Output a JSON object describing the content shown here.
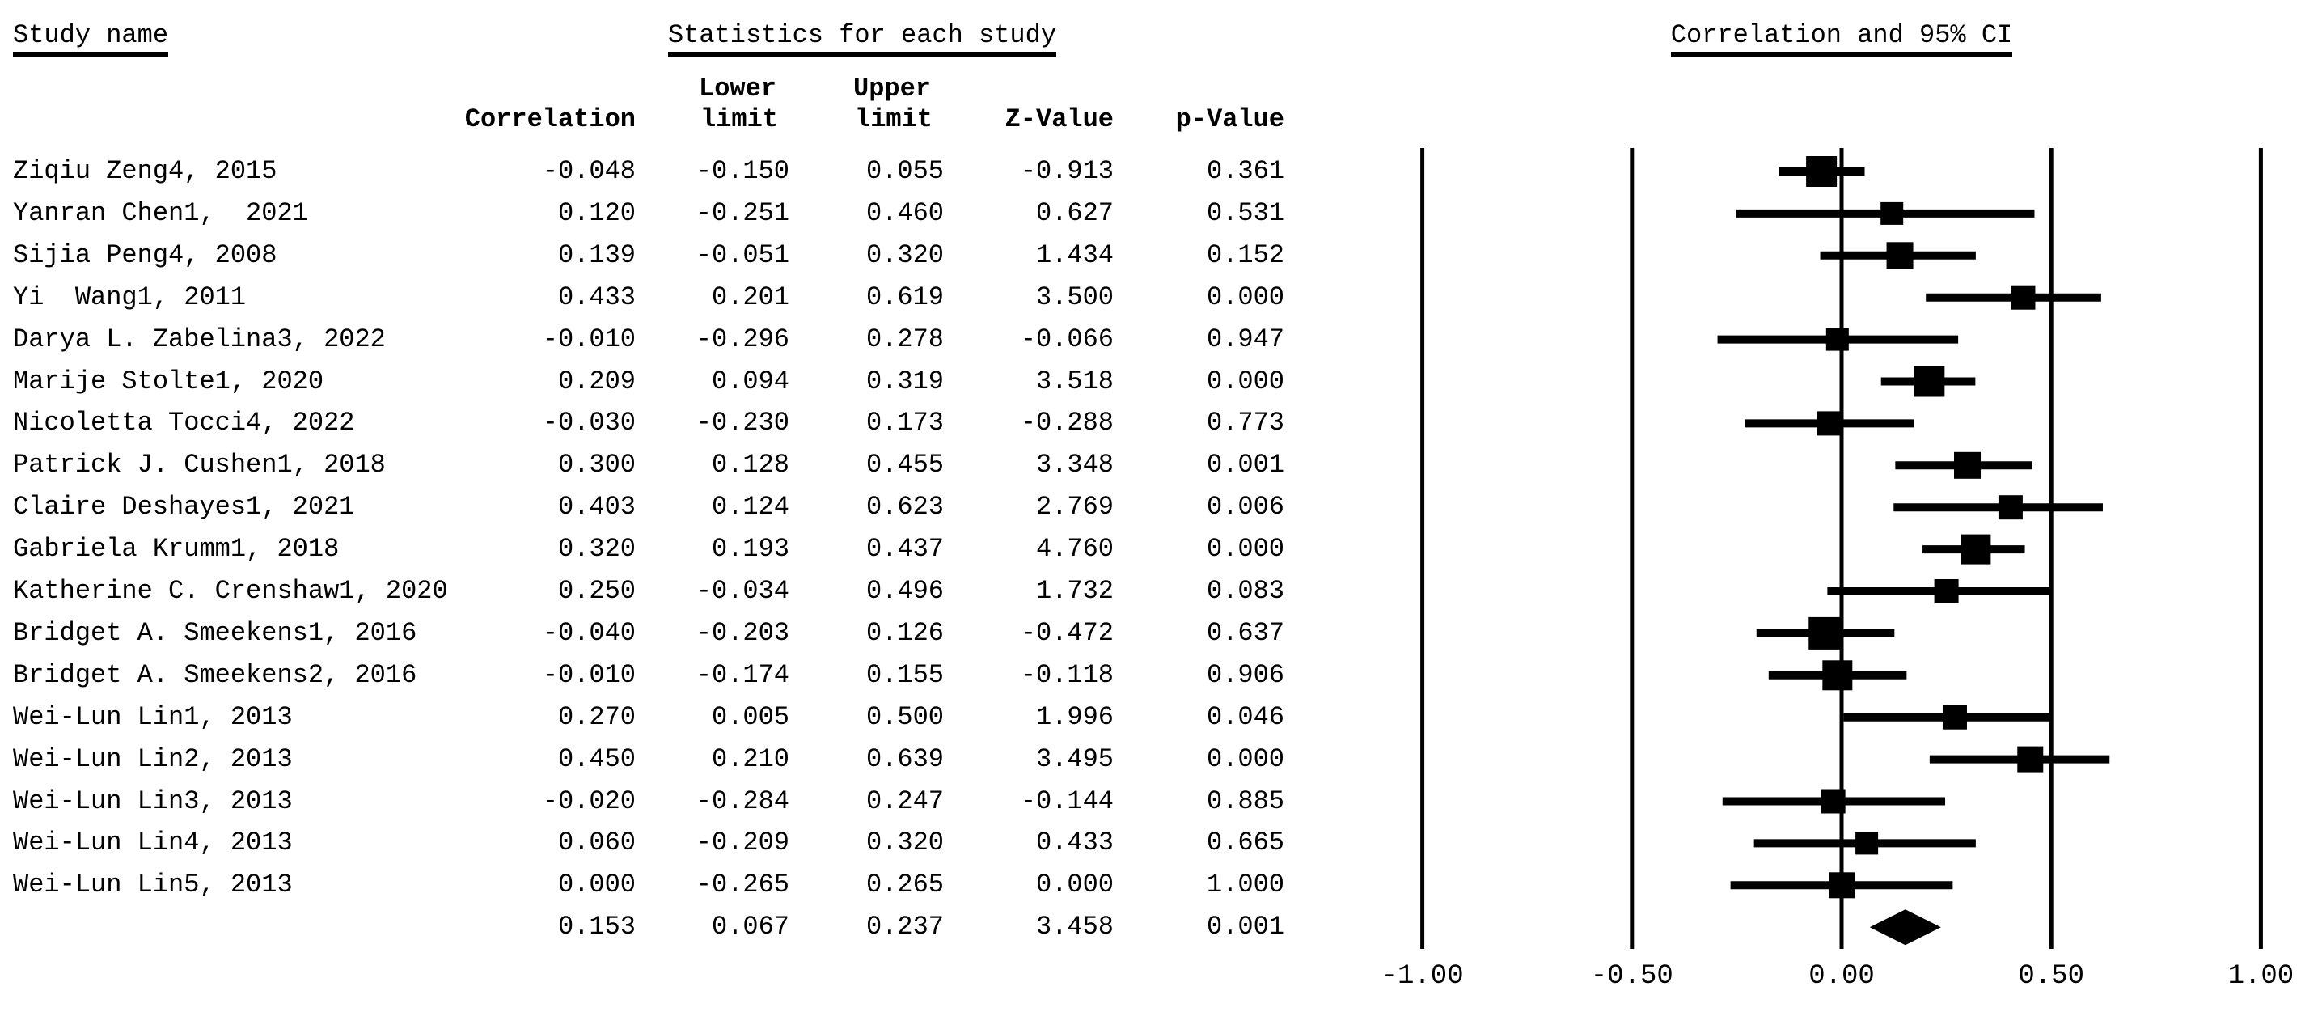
{
  "header": {
    "study_name": "Study name",
    "stats_title": "Statistics for each study"
  },
  "columns": {
    "correlation": "Correlation",
    "lower1": "Lower",
    "lower2": "limit",
    "upper1": "Upper",
    "upper2": "limit",
    "z": "Z-Value",
    "p": "p-Value"
  },
  "chart_data": {
    "type": "forest",
    "title": "Correlation and 95% CI",
    "effect_label": "Correlation",
    "xlim": [
      -1,
      1
    ],
    "x_ticks": [
      -1.0,
      -0.5,
      0.0,
      0.5,
      1.0
    ],
    "x_tick_labels": [
      "-1.00",
      "-0.50",
      "0.00",
      "0.50",
      "1.00"
    ],
    "grid_on": true,
    "studies": [
      {
        "name": "Ziqiu Zeng4, 2015",
        "correlation": -0.048,
        "lower": -0.15,
        "upper": 0.055,
        "z": -0.913,
        "p": 0.361,
        "size": 38
      },
      {
        "name": "Yanran Chen1,  2021",
        "correlation": 0.12,
        "lower": -0.251,
        "upper": 0.46,
        "z": 0.627,
        "p": 0.531,
        "size": 28
      },
      {
        "name": "Sijia Peng4, 2008",
        "correlation": 0.139,
        "lower": -0.051,
        "upper": 0.32,
        "z": 1.434,
        "p": 0.152,
        "size": 33
      },
      {
        "name": "Yi  Wang1, 2011",
        "correlation": 0.433,
        "lower": 0.201,
        "upper": 0.619,
        "z": 3.5,
        "p": 0.0,
        "size": 30
      },
      {
        "name": "Darya L. Zabelina3, 2022",
        "correlation": -0.01,
        "lower": -0.296,
        "upper": 0.278,
        "z": -0.066,
        "p": 0.947,
        "size": 28
      },
      {
        "name": "Marije Stolte1, 2020",
        "correlation": 0.209,
        "lower": 0.094,
        "upper": 0.319,
        "z": 3.518,
        "p": 0.0,
        "size": 38
      },
      {
        "name": "Nicoletta Tocci4, 2022",
        "correlation": -0.03,
        "lower": -0.23,
        "upper": 0.173,
        "z": -0.288,
        "p": 0.773,
        "size": 30
      },
      {
        "name": "Patrick J. Cushen1, 2018",
        "correlation": 0.3,
        "lower": 0.128,
        "upper": 0.455,
        "z": 3.348,
        "p": 0.001,
        "size": 33
      },
      {
        "name": "Claire Deshayes1, 2021",
        "correlation": 0.403,
        "lower": 0.124,
        "upper": 0.623,
        "z": 2.769,
        "p": 0.006,
        "size": 30
      },
      {
        "name": "Gabriela Krumm1, 2018",
        "correlation": 0.32,
        "lower": 0.193,
        "upper": 0.437,
        "z": 4.76,
        "p": 0.0,
        "size": 37
      },
      {
        "name": "Katherine C. Crenshaw1, 2020",
        "correlation": 0.25,
        "lower": -0.034,
        "upper": 0.496,
        "z": 1.732,
        "p": 0.083,
        "size": 30
      },
      {
        "name": "Bridget A. Smeekens1, 2016",
        "correlation": -0.04,
        "lower": -0.203,
        "upper": 0.126,
        "z": -0.472,
        "p": 0.637,
        "size": 40
      },
      {
        "name": "Bridget A. Smeekens2, 2016",
        "correlation": -0.01,
        "lower": -0.174,
        "upper": 0.155,
        "z": -0.118,
        "p": 0.906,
        "size": 37
      },
      {
        "name": "Wei-Lun Lin1, 2013",
        "correlation": 0.27,
        "lower": 0.005,
        "upper": 0.5,
        "z": 1.996,
        "p": 0.046,
        "size": 30
      },
      {
        "name": "Wei-Lun Lin2, 2013",
        "correlation": 0.45,
        "lower": 0.21,
        "upper": 0.639,
        "z": 3.495,
        "p": 0.0,
        "size": 32
      },
      {
        "name": "Wei-Lun Lin3, 2013",
        "correlation": -0.02,
        "lower": -0.284,
        "upper": 0.247,
        "z": -0.144,
        "p": 0.885,
        "size": 30
      },
      {
        "name": "Wei-Lun Lin4, 2013",
        "correlation": 0.06,
        "lower": -0.209,
        "upper": 0.32,
        "z": 0.433,
        "p": 0.665,
        "size": 28
      },
      {
        "name": "Wei-Lun Lin5, 2013",
        "correlation": 0.0,
        "lower": -0.265,
        "upper": 0.265,
        "z": 0.0,
        "p": 1.0,
        "size": 32
      }
    ],
    "summary": {
      "name": "",
      "correlation": 0.153,
      "lower": 0.067,
      "upper": 0.237,
      "z": 3.458,
      "p": 0.001
    }
  },
  "colors": {
    "ink": "#000000",
    "background": "#ffffff"
  }
}
